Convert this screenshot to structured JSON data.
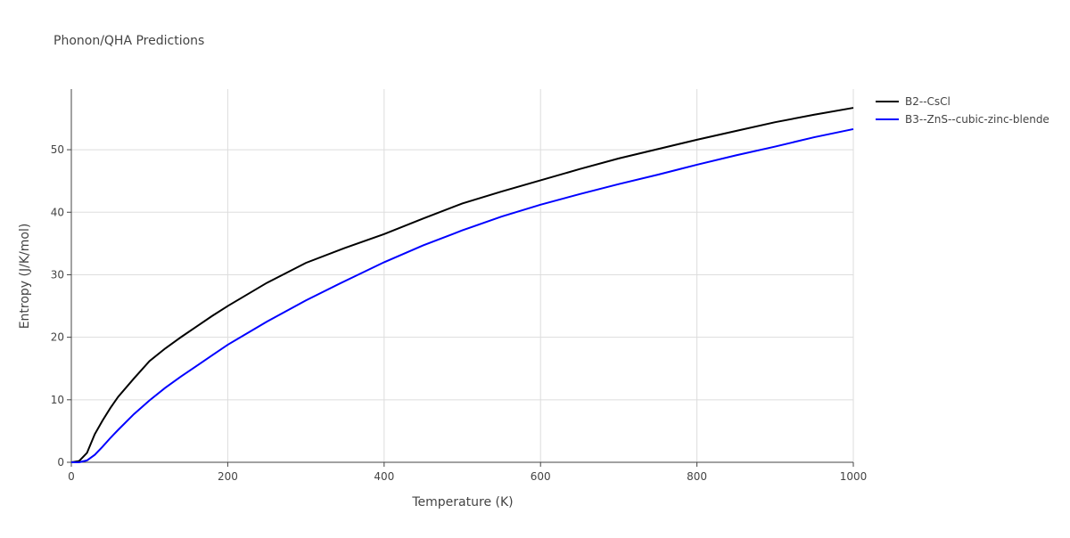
{
  "chart_data": {
    "type": "line",
    "title": "Phonon/QHA Predictions",
    "xlabel": "Temperature (K)",
    "ylabel": "Entropy (J/K/mol)",
    "x": [
      0,
      10,
      20,
      30,
      40,
      50,
      60,
      80,
      100,
      120,
      140,
      160,
      180,
      200,
      250,
      300,
      350,
      400,
      450,
      500,
      550,
      600,
      650,
      700,
      750,
      800,
      850,
      900,
      950,
      1000
    ],
    "series": [
      {
        "name": "B2--CsCl",
        "color": "#000000",
        "values": [
          0,
          0.2,
          1.5,
          4.5,
          6.7,
          8.7,
          10.5,
          13.4,
          16.2,
          18.2,
          20,
          21.7,
          23.4,
          25,
          28.7,
          31.9,
          34.3,
          36.5,
          39.0,
          41.4,
          43.3,
          45.1,
          46.9,
          48.6,
          50.1,
          51.6,
          53.0,
          54.4,
          55.6,
          56.7
        ]
      },
      {
        "name": "B3--ZnS--cubic-zinc-blende",
        "color": "#0000ff",
        "values": [
          0,
          0,
          0.3,
          1.2,
          2.5,
          3.9,
          5.2,
          7.7,
          9.9,
          11.9,
          13.7,
          15.4,
          17.1,
          18.8,
          22.5,
          25.9,
          29.0,
          32.0,
          34.7,
          37.1,
          39.3,
          41.2,
          42.9,
          44.5,
          46.0,
          47.6,
          49.1,
          50.5,
          52.0,
          53.3
        ]
      }
    ],
    "xlim": [
      0,
      1000
    ],
    "xticks": [
      0,
      200,
      400,
      600,
      800,
      1000
    ],
    "ylim": [
      0,
      59.7
    ],
    "yticks": [
      0,
      10,
      20,
      30,
      40,
      50
    ],
    "grid": true,
    "legend": "outside-right"
  }
}
